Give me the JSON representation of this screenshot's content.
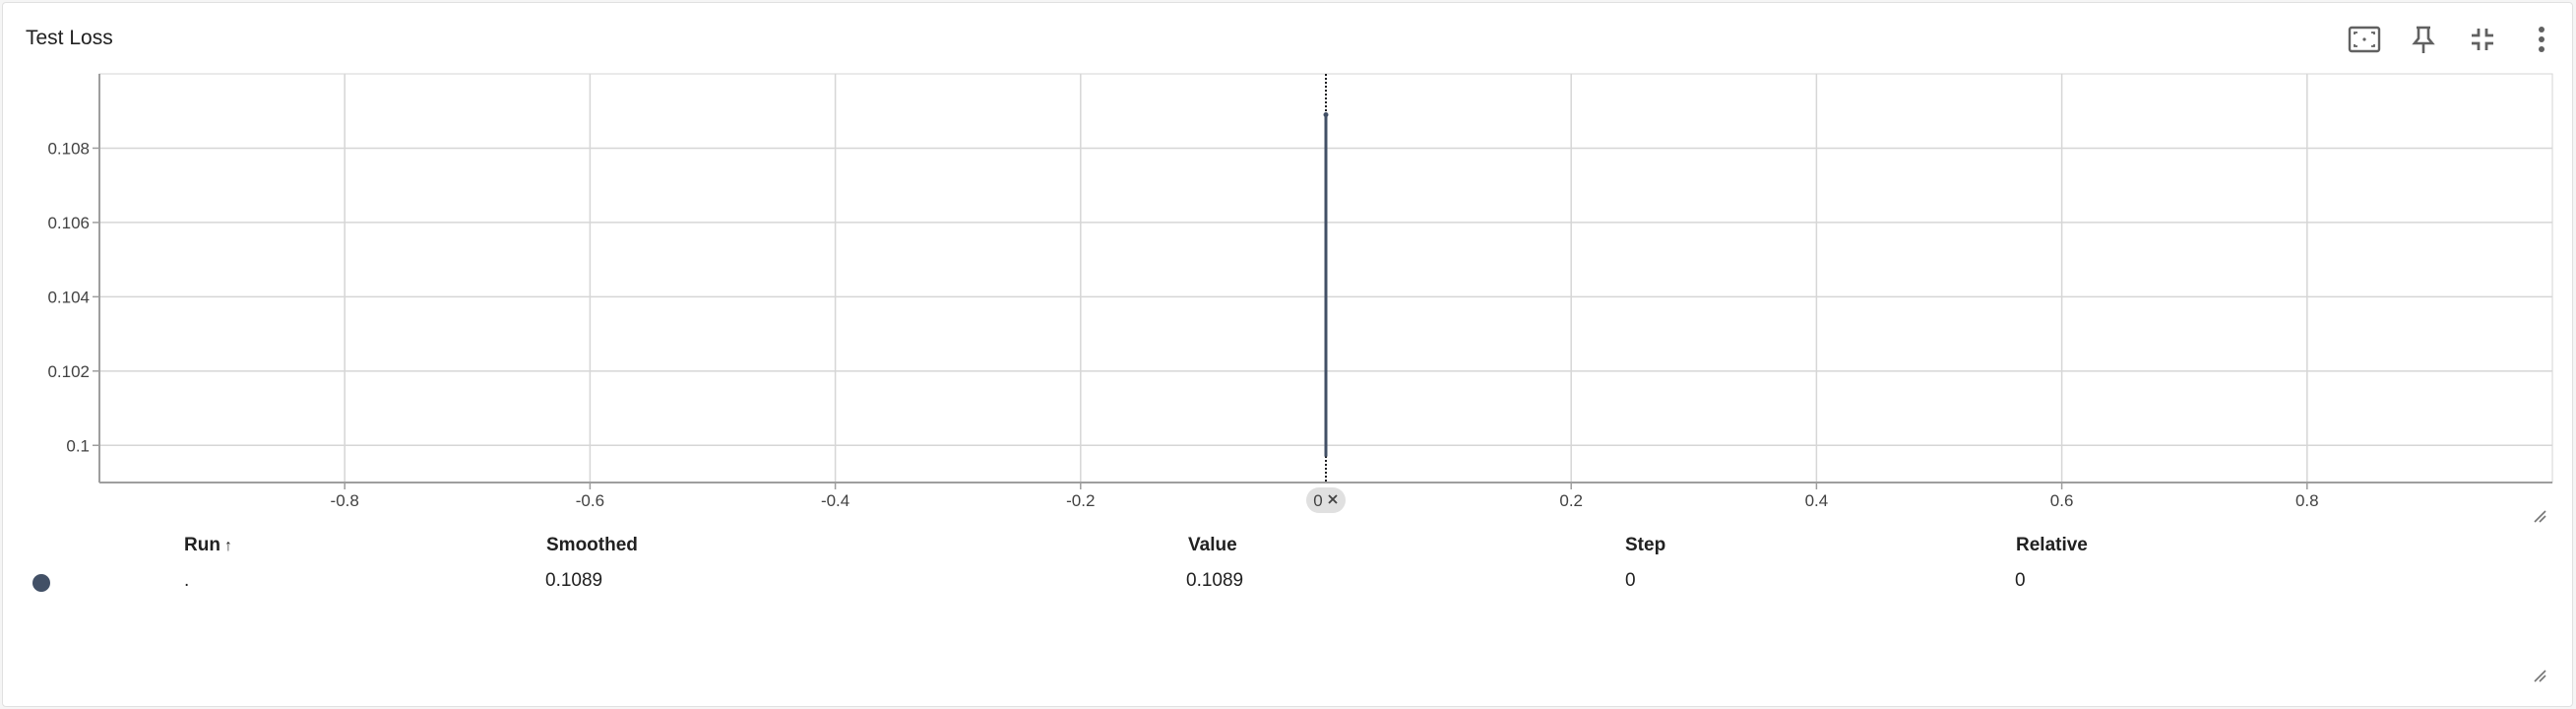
{
  "card": {
    "title": "Test Loss"
  },
  "toolbar": {
    "buttons": [
      {
        "icon": "fit-domain-icon"
      },
      {
        "icon": "pin-icon"
      },
      {
        "icon": "collapse-icon"
      },
      {
        "icon": "more-vert-icon"
      }
    ]
  },
  "colors": {
    "series": "#425066",
    "grid": "#d6d6d6",
    "axis": "#9e9e9e",
    "cursor_chip": "#e0e0e0"
  },
  "chart_data": {
    "type": "line",
    "xlim": [
      -1,
      1
    ],
    "ylim": [
      0.099,
      0.11
    ],
    "x_ticks": [
      -0.8,
      -0.6,
      -0.4,
      -0.2,
      0.2,
      0.4,
      0.6,
      0.8
    ],
    "x_tick_labels": [
      "-0.8",
      "-0.6",
      "-0.4",
      "-0.2",
      "0.2",
      "0.4",
      "0.6",
      "0.8"
    ],
    "y_ticks": [
      0.1,
      0.102,
      0.104,
      0.106,
      0.108
    ],
    "y_tick_labels": [
      "0.1",
      "0.102",
      "0.104",
      "0.106",
      "0.108"
    ],
    "cursor_x_label": "0",
    "grid": true,
    "series": [
      {
        "x": [
          0
        ],
        "y": [
          0.1089
        ],
        "color": "#425066"
      }
    ]
  },
  "table": {
    "headers": {
      "run": "Run",
      "run_sort": "↑",
      "smoothed": "Smoothed",
      "value": "Value",
      "step": "Step",
      "relative": "Relative"
    },
    "rows": [
      {
        "run": ".",
        "smoothed": "0.1089",
        "value": "0.1089",
        "step": "0",
        "relative": "0",
        "color": "#425066"
      }
    ]
  }
}
